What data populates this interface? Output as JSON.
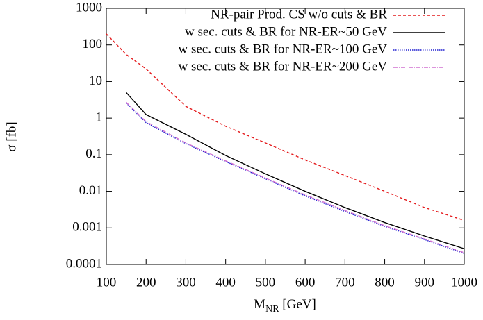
{
  "chart_data": {
    "type": "line",
    "xlabel": {
      "main": "M",
      "sub": "NR",
      "rest": " [GeV]"
    },
    "ylabel": "σ [fb]",
    "x": [
      100,
      150,
      200,
      300,
      400,
      500,
      600,
      700,
      800,
      900,
      1000
    ],
    "series": [
      {
        "name": "NR-pair Prod. CS w/o cuts & BR",
        "color": "#e41a1c",
        "dash": "4,3",
        "values": [
          200,
          55,
          22,
          2.1,
          0.6,
          0.21,
          0.072,
          0.027,
          0.01,
          0.0036,
          0.0016
        ]
      },
      {
        "name": "w sec. cuts & BR for NR-ER~50 GeV",
        "color": "#000000",
        "dash": "none",
        "values": [
          null,
          5,
          1.25,
          0.36,
          0.095,
          0.03,
          0.01,
          0.0036,
          0.0014,
          0.0006,
          0.00027
        ]
      },
      {
        "name": "w sec. cuts & BR for NR-ER~100 GeV",
        "color": "#2020d0",
        "dash": "1.5,1.5",
        "values": [
          null,
          2.6,
          0.75,
          0.2,
          0.065,
          0.022,
          0.0075,
          0.0028,
          0.0011,
          0.00048,
          0.0002
        ]
      },
      {
        "name": "w sec. cuts & BR for NR-ER~200 GeV",
        "color": "#d070d0",
        "dash": "6,2,1,2",
        "values": [
          null,
          2.7,
          0.8,
          0.21,
          0.068,
          0.023,
          0.008,
          0.003,
          0.00115,
          0.0005,
          0.00021
        ]
      }
    ],
    "xlim": [
      100,
      1000
    ],
    "xticks": [
      100,
      200,
      300,
      400,
      500,
      600,
      700,
      800,
      900,
      1000
    ],
    "ylim": [
      0.0001,
      1000
    ],
    "yticks": [
      0.0001,
      0.001,
      0.01,
      0.1,
      1,
      10,
      100,
      1000
    ],
    "ylog": true,
    "legend": "top-right"
  }
}
